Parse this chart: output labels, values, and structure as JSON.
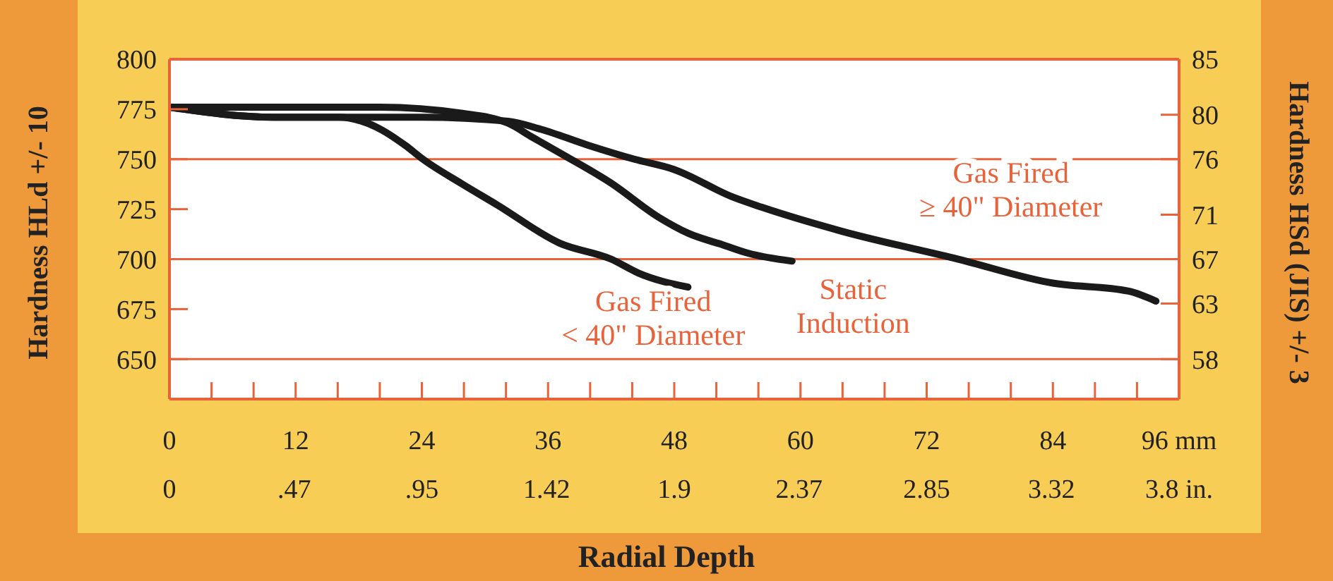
{
  "chart_data": {
    "type": "line",
    "xlabel": "Radial Depth",
    "ylabel": "Hardness HLd +/- 10",
    "y2label": "Hardness HSd (JIS) +/- 3",
    "xlim": [
      0,
      96
    ],
    "xticks": [
      0,
      {
        "value": 4,
        "label": null
      },
      {
        "value": 8,
        "label": null
      },
      12,
      {
        "value": 16,
        "label": null
      },
      {
        "value": 20,
        "label": null
      },
      24,
      {
        "value": 28,
        "label": null
      },
      {
        "value": 32,
        "label": null
      },
      36,
      {
        "value": 40,
        "label": null
      },
      {
        "value": 44,
        "label": null
      },
      48,
      {
        "value": 52,
        "label": null
      },
      {
        "value": 56,
        "label": null
      },
      60,
      {
        "value": 64,
        "label": null
      },
      {
        "value": 68,
        "label": null
      },
      72,
      {
        "value": 76,
        "label": null
      },
      {
        "value": 80,
        "label": null
      },
      84,
      {
        "value": 88,
        "label": null
      },
      {
        "value": 92,
        "label": null
      },
      {
        "value": 96,
        "label": "96 mm"
      }
    ],
    "x2lim": [
      0,
      3.8
    ],
    "x2ticks": [
      0,
      {
        "value": 0.47,
        "label": ".47"
      },
      {
        "value": 0.95,
        "label": ".95"
      },
      1.42,
      1.9,
      2.37,
      2.85,
      3.32,
      {
        "value": 3.8,
        "label": "3.8 in."
      }
    ],
    "ylim": [
      630,
      800
    ],
    "yticks": [
      650,
      675,
      700,
      725,
      750,
      775,
      800
    ],
    "y2lim": [
      54.4,
      85
    ],
    "y2ticks": [
      58,
      63,
      67,
      71,
      76,
      80,
      85
    ],
    "marker": "none",
    "line_style": "solid",
    "ref_lines": [
      {
        "axis": "y",
        "value": 650,
        "color": "#e8623a"
      },
      {
        "axis": "y",
        "value": 700,
        "color": "#e8623a"
      },
      {
        "axis": "y",
        "value": 750,
        "color": "#e8623a"
      }
    ],
    "series": [
      {
        "name": "Gas Fired\n< 40\" Diameter",
        "color": "#1a1a1a",
        "x": [
          0,
          9.8,
          16.1,
          19.7,
          22.4,
          24.1,
          27.7,
          31.2,
          37.1,
          42,
          44.6,
          49.3
        ],
        "values": [
          776,
          771,
          771,
          766,
          757,
          750,
          738,
          727,
          708,
          700,
          693,
          686
        ]
      },
      {
        "name": "Static\nInduction",
        "color": "#1a1a1a",
        "x": [
          0,
          12,
          20,
          27.7,
          32.2,
          34.5,
          37.5,
          42,
          46.5,
          49.3,
          52.7,
          55,
          59.2
        ],
        "values": [
          776,
          776,
          776,
          773,
          768,
          761,
          752,
          738,
          721,
          713,
          707,
          703,
          699
        ]
      },
      {
        "name": "Gas Fired\n≥ 40\" Diameter",
        "color": "#1a1a1a",
        "x": [
          0,
          10,
          24,
          32.2,
          35.3,
          39.8,
          44.2,
          47.9,
          53.6,
          56.3,
          63.9,
          75,
          84,
          91.2,
          93.8
        ],
        "values": [
          776,
          771,
          771,
          769,
          765,
          757,
          750,
          745,
          731,
          726,
          714,
          700,
          688,
          684,
          679
        ]
      }
    ]
  }
}
